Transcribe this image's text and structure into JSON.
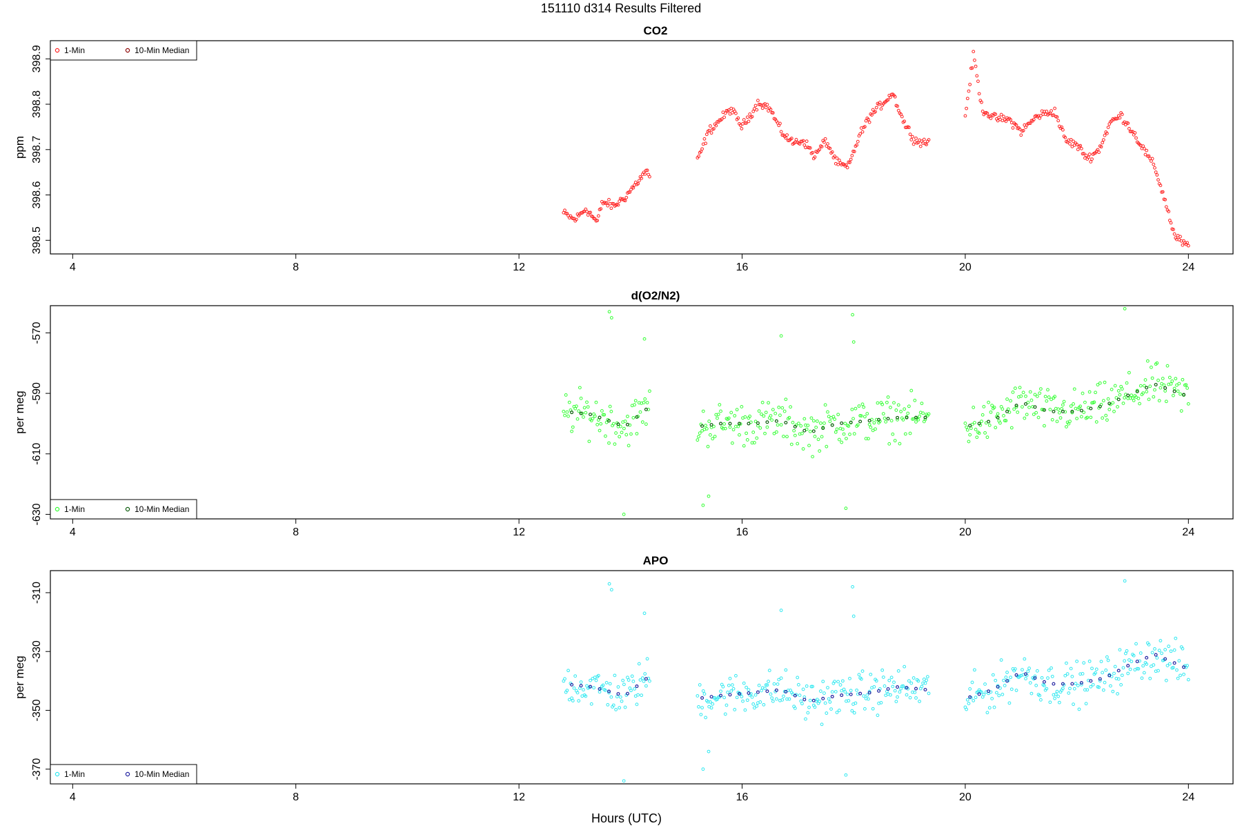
{
  "figure": {
    "title": "151110   d314   Results Filtered",
    "xlabel": "Hours (UTC)"
  },
  "chart_data": [
    {
      "type": "scatter",
      "title": "CO2",
      "ylabel": "ppm",
      "xlim": [
        3.6,
        24.8
      ],
      "ylim": [
        398.47,
        398.94
      ],
      "x_ticks": [
        4,
        8,
        12,
        16,
        20,
        24
      ],
      "y_ticks": [
        398.5,
        398.6,
        398.7,
        398.8,
        398.9
      ],
      "legend": {
        "placement": "top-left",
        "entries": [
          "1-Min",
          "10-Min Median"
        ]
      },
      "series_colors": {
        "one_min": "#ff2020",
        "median": "#8b0000"
      },
      "anchors": [
        [
          12.8,
          398.56
        ],
        [
          13.0,
          398.545
        ],
        [
          13.2,
          398.57
        ],
        [
          13.4,
          398.54
        ],
        [
          13.5,
          398.585
        ],
        [
          13.7,
          398.575
        ],
        [
          13.9,
          398.595
        ],
        [
          14.1,
          398.625
        ],
        [
          14.3,
          398.655
        ],
        [
          14.35,
          398.632
        ],
        [
          15.2,
          398.675
        ],
        [
          15.4,
          398.74
        ],
        [
          15.8,
          398.79
        ],
        [
          16.0,
          398.75
        ],
        [
          16.3,
          398.805
        ],
        [
          16.5,
          398.79
        ],
        [
          16.7,
          398.74
        ],
        [
          16.9,
          398.715
        ],
        [
          17.1,
          398.72
        ],
        [
          17.3,
          398.685
        ],
        [
          17.5,
          398.72
        ],
        [
          17.7,
          398.67
        ],
        [
          17.9,
          398.66
        ],
        [
          18.1,
          398.73
        ],
        [
          18.3,
          398.775
        ],
        [
          18.5,
          398.8
        ],
        [
          18.7,
          398.825
        ],
        [
          18.9,
          398.76
        ],
        [
          19.1,
          398.72
        ],
        [
          19.3,
          398.715
        ],
        [
          20.0,
          398.775
        ],
        [
          20.15,
          398.91
        ],
        [
          20.3,
          398.79
        ],
        [
          20.5,
          398.77
        ],
        [
          20.8,
          398.765
        ],
        [
          21.0,
          398.74
        ],
        [
          21.3,
          398.775
        ],
        [
          21.6,
          398.785
        ],
        [
          21.8,
          398.72
        ],
        [
          22.0,
          398.71
        ],
        [
          22.2,
          398.68
        ],
        [
          22.4,
          398.7
        ],
        [
          22.6,
          398.76
        ],
        [
          22.8,
          398.775
        ],
        [
          23.0,
          398.74
        ],
        [
          23.2,
          398.7
        ],
        [
          23.4,
          398.66
        ],
        [
          23.6,
          398.58
        ],
        [
          23.75,
          398.51
        ],
        [
          24.0,
          398.485
        ]
      ],
      "noise": 0.008,
      "spikes": []
    },
    {
      "type": "scatter",
      "title": "d(O2/N2)",
      "ylabel": "per meg",
      "xlim": [
        3.6,
        24.8
      ],
      "ylim": [
        -631.5,
        -561
      ],
      "x_ticks": [
        4,
        8,
        12,
        16,
        20,
        24
      ],
      "y_ticks": [
        -630,
        -610,
        -590,
        -570
      ],
      "y_tick_labels": [
        "-630",
        "-610",
        "-590",
        "-570"
      ],
      "legend": {
        "placement": "bottom-left",
        "entries": [
          "1-Min",
          "10-Min Median"
        ]
      },
      "series_colors": {
        "one_min": "#33ff33",
        "median": "#0a5a0a"
      },
      "anchors": [
        [
          12.8,
          -596
        ],
        [
          13.3,
          -597
        ],
        [
          13.9,
          -601
        ],
        [
          14.3,
          -595
        ],
        [
          15.2,
          -601
        ],
        [
          15.6,
          -600
        ],
        [
          16.2,
          -600
        ],
        [
          16.7,
          -599
        ],
        [
          17.2,
          -603
        ],
        [
          17.7,
          -600
        ],
        [
          18.3,
          -599
        ],
        [
          18.8,
          -598
        ],
        [
          19.3,
          -598
        ],
        [
          20.0,
          -601
        ],
        [
          20.5,
          -599
        ],
        [
          21.0,
          -593
        ],
        [
          21.5,
          -596
        ],
        [
          22.0,
          -596
        ],
        [
          22.5,
          -594
        ],
        [
          23.0,
          -590
        ],
        [
          23.4,
          -587
        ],
        [
          24.0,
          -591
        ]
      ],
      "noise": 6,
      "spikes": [
        [
          13.62,
          -563
        ],
        [
          13.66,
          -565
        ],
        [
          13.88,
          -630
        ],
        [
          14.25,
          -572
        ],
        [
          15.3,
          -627
        ],
        [
          15.4,
          -624
        ],
        [
          16.7,
          -571
        ],
        [
          17.98,
          -564
        ],
        [
          17.86,
          -628
        ],
        [
          18.0,
          -573
        ],
        [
          22.86,
          -562
        ]
      ]
    },
    {
      "type": "scatter",
      "title": "APO",
      "ylabel": "per meg",
      "xlim": [
        3.6,
        24.8
      ],
      "ylim": [
        -375,
        -302.5
      ],
      "x_ticks": [
        4,
        8,
        12,
        16,
        20,
        24
      ],
      "y_ticks": [
        -370,
        -350,
        -330,
        -310
      ],
      "y_tick_labels": [
        "-370",
        "-350",
        "-330",
        "-310"
      ],
      "legend": {
        "placement": "bottom-left",
        "entries": [
          "1-Min",
          "10-Min Median"
        ]
      },
      "series_colors": {
        "one_min": "#2ee8f0",
        "median": "#2020a0"
      },
      "anchors": [
        [
          12.8,
          -341
        ],
        [
          13.3,
          -342
        ],
        [
          13.9,
          -345
        ],
        [
          14.3,
          -339
        ],
        [
          15.2,
          -346
        ],
        [
          15.6,
          -345
        ],
        [
          16.2,
          -344
        ],
        [
          16.7,
          -343
        ],
        [
          17.2,
          -347
        ],
        [
          17.7,
          -345
        ],
        [
          18.3,
          -344
        ],
        [
          18.8,
          -342
        ],
        [
          19.3,
          -343
        ],
        [
          20.0,
          -346
        ],
        [
          20.5,
          -343
        ],
        [
          21.0,
          -337
        ],
        [
          21.5,
          -341
        ],
        [
          22.0,
          -341
        ],
        [
          22.5,
          -339
        ],
        [
          23.0,
          -334
        ],
        [
          23.4,
          -331
        ],
        [
          24.0,
          -336
        ]
      ],
      "noise": 6,
      "spikes": [
        [
          13.62,
          -307
        ],
        [
          13.66,
          -309
        ],
        [
          13.88,
          -374
        ],
        [
          14.25,
          -317
        ],
        [
          15.3,
          -370
        ],
        [
          15.4,
          -364
        ],
        [
          16.7,
          -316
        ],
        [
          17.98,
          -308
        ],
        [
          17.86,
          -372
        ],
        [
          18.0,
          -318
        ],
        [
          22.86,
          -306
        ]
      ]
    }
  ]
}
